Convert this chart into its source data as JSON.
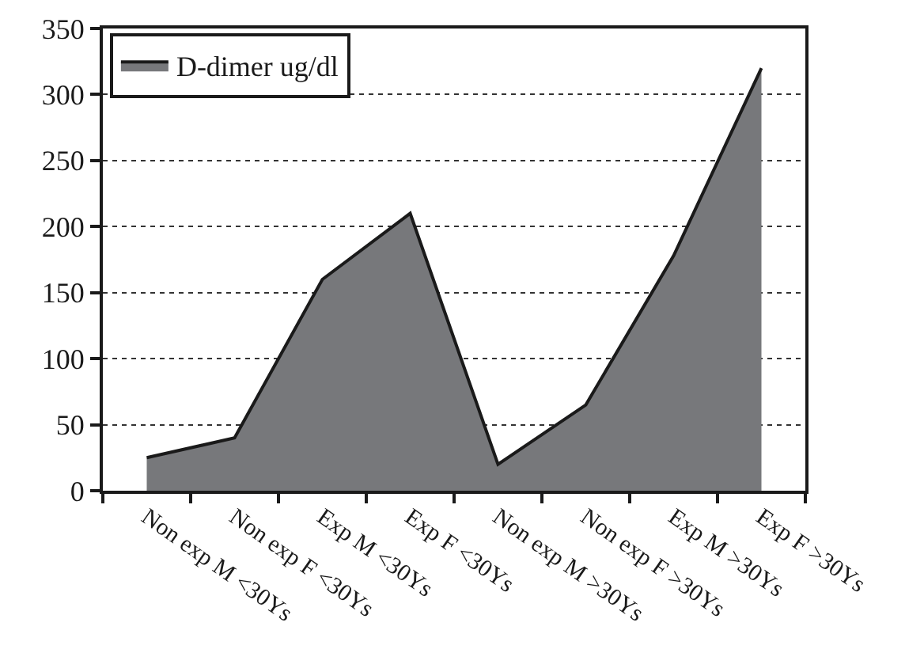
{
  "chart_data": {
    "type": "area",
    "categories": [
      "Non exp M <30Ys",
      "Non exp F <30Ys",
      "Exp M <30Ys",
      "Exp F <30Ys",
      "Non exp M >30Ys",
      "Non exp F >30Ys",
      "Exp M >30Ys",
      "Exp F >30Ys"
    ],
    "series": [
      {
        "name": "D-dimer ug/dl",
        "color": "#77787b",
        "values": [
          25,
          40,
          160,
          210,
          20,
          65,
          178,
          320
        ]
      }
    ],
    "ylim": [
      0,
      350
    ],
    "yticks": [
      0,
      50,
      100,
      150,
      200,
      250,
      300,
      350
    ],
    "grid": "y",
    "legend": "top left",
    "line_style": "solid",
    "marker": "none"
  }
}
